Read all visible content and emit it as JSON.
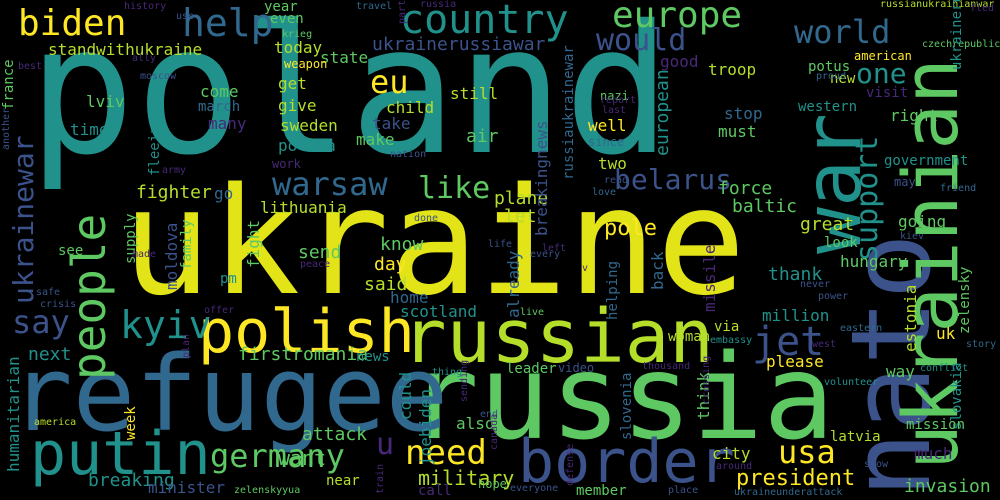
{
  "words": [
    {
      "text": "poland",
      "color": "#21918c"
    },
    {
      "text": "ukraine",
      "color": "#e2e418"
    },
    {
      "text": "russia",
      "color": "#5ec962"
    },
    {
      "text": "refugee",
      "color": "#31688e"
    },
    {
      "text": "nato",
      "color": "#3b528b"
    },
    {
      "text": "ukrainian",
      "color": "#5ec962"
    },
    {
      "text": "war",
      "color": "#21918c"
    },
    {
      "text": "russian",
      "color": "#b5de2b"
    },
    {
      "text": "border",
      "color": "#3b528b"
    },
    {
      "text": "polish",
      "color": "#fde725"
    },
    {
      "text": "putin",
      "color": "#21918c"
    },
    {
      "text": "country",
      "color": "#21918c"
    },
    {
      "text": "biden",
      "color": "#fde725"
    },
    {
      "text": "help",
      "color": "#31688e"
    },
    {
      "text": "europe",
      "color": "#5ec962"
    },
    {
      "text": "world",
      "color": "#31688e"
    },
    {
      "text": "would",
      "color": "#3b528b"
    },
    {
      "text": "people",
      "color": "#5ec962"
    },
    {
      "text": "germany",
      "color": "#5ec962"
    },
    {
      "text": "need",
      "color": "#fde725"
    },
    {
      "text": "usa",
      "color": "#fde725"
    },
    {
      "text": "warsaw",
      "color": "#31688e"
    },
    {
      "text": "belarus",
      "color": "#3b528b"
    },
    {
      "text": "like",
      "color": "#5ec962"
    },
    {
      "text": "jet",
      "color": "#3b528b"
    },
    {
      "text": "kyiv",
      "color": "#21918c"
    },
    {
      "text": "say",
      "color": "#3b528b"
    },
    {
      "text": "eu",
      "color": "#fde725"
    },
    {
      "text": "one",
      "color": "#21918c"
    },
    {
      "text": "support",
      "color": "#21918c"
    },
    {
      "text": "ukrainewar",
      "color": "#3b528b"
    },
    {
      "text": "standwithukraine",
      "color": "#b5de2b"
    },
    {
      "text": "ukrainerussiawar",
      "color": "#3b528b"
    },
    {
      "text": "firstromania",
      "color": "#5ec962"
    },
    {
      "text": "u",
      "color": "#482878"
    },
    {
      "text": "fighter",
      "color": "#b5de2b"
    },
    {
      "text": "lithuania",
      "color": "#b5de2b"
    },
    {
      "text": "pole",
      "color": "#fde725"
    },
    {
      "text": "plane",
      "color": "#b5de2b"
    },
    {
      "text": "baltic",
      "color": "#5ec962"
    },
    {
      "text": "force",
      "color": "#5ec962"
    },
    {
      "text": "great",
      "color": "#b5de2b"
    },
    {
      "text": "going",
      "color": "#5ec962"
    },
    {
      "text": "hungary",
      "color": "#5ec962"
    },
    {
      "text": "thank",
      "color": "#21918c"
    },
    {
      "text": "president",
      "color": "#fde725"
    },
    {
      "text": "invasion",
      "color": "#5ec962"
    },
    {
      "text": "military",
      "color": "#b5de2b"
    },
    {
      "text": "attack",
      "color": "#5ec962"
    },
    {
      "text": "want",
      "color": "#5ec962"
    },
    {
      "text": "breaking",
      "color": "#21918c"
    },
    {
      "text": "humanitarian",
      "color": "#21918c"
    },
    {
      "text": "minister",
      "color": "#3b528b"
    },
    {
      "text": "next",
      "color": "#21918c"
    },
    {
      "text": "scotland",
      "color": "#21918c"
    },
    {
      "text": "home",
      "color": "#31688e"
    },
    {
      "text": "said",
      "color": "#b5de2b"
    },
    {
      "text": "day",
      "color": "#fde725"
    },
    {
      "text": "know",
      "color": "#5ec962"
    },
    {
      "text": "send",
      "color": "#5ec962"
    },
    {
      "text": "let",
      "color": "#b5de2b"
    },
    {
      "text": "helping",
      "color": "#31688e"
    },
    {
      "text": "back",
      "color": "#31688e"
    },
    {
      "text": "missile",
      "color": "#482878"
    },
    {
      "text": "already",
      "color": "#31688e"
    },
    {
      "text": "breakingnews",
      "color": "#3b528b"
    },
    {
      "text": "today",
      "color": "#b5de2b"
    },
    {
      "text": "state",
      "color": "#5ec962"
    },
    {
      "text": "get",
      "color": "#b5de2b"
    },
    {
      "text": "give",
      "color": "#b5de2b"
    },
    {
      "text": "come",
      "color": "#5ec962"
    },
    {
      "text": "march",
      "color": "#31688e"
    },
    {
      "text": "many",
      "color": "#482878"
    },
    {
      "text": "sweden",
      "color": "#b5de2b"
    },
    {
      "text": "polska",
      "color": "#21918c"
    },
    {
      "text": "make",
      "color": "#5ec962"
    },
    {
      "text": "child",
      "color": "#b5de2b"
    },
    {
      "text": "take",
      "color": "#3b528b"
    },
    {
      "text": "air",
      "color": "#5ec962"
    },
    {
      "text": "still",
      "color": "#b5de2b"
    },
    {
      "text": "well",
      "color": "#fde725"
    },
    {
      "text": "two",
      "color": "#b5de2b"
    },
    {
      "text": "european",
      "color": "#21918c"
    },
    {
      "text": "must",
      "color": "#5ec962"
    },
    {
      "text": "stop",
      "color": "#31688e"
    },
    {
      "text": "right",
      "color": "#5ec962"
    },
    {
      "text": "western",
      "color": "#21918c"
    },
    {
      "text": "troop",
      "color": "#b5de2b"
    },
    {
      "text": "good",
      "color": "#482878"
    },
    {
      "text": "new",
      "color": "#b5de2b"
    },
    {
      "text": "potus",
      "color": "#5ec962"
    },
    {
      "text": "visit",
      "color": "#482878"
    },
    {
      "text": "government",
      "color": "#21918c"
    },
    {
      "text": "zelensky",
      "color": "#5ec962"
    },
    {
      "text": "estonia",
      "color": "#b5de2b"
    },
    {
      "text": "slovakia",
      "color": "#21918c"
    },
    {
      "text": "uk",
      "color": "#fde725"
    },
    {
      "text": "mission",
      "color": "#5ec962"
    },
    {
      "text": "latvia",
      "color": "#b5de2b"
    },
    {
      "text": "much",
      "color": "#482878"
    },
    {
      "text": "city",
      "color": "#b5de2b"
    },
    {
      "text": "woman",
      "color": "#b5de2b"
    },
    {
      "text": "via",
      "color": "#b5de2b"
    },
    {
      "text": "please",
      "color": "#fde725"
    },
    {
      "text": "million",
      "color": "#21918c"
    },
    {
      "text": "way",
      "color": "#5ec962"
    },
    {
      "text": "think",
      "color": "#5ec962"
    },
    {
      "text": "could",
      "color": "#21918c"
    },
    {
      "text": "also",
      "color": "#5ec962"
    },
    {
      "text": "joebiden",
      "color": "#21918c"
    },
    {
      "text": "slovenia",
      "color": "#31688e"
    },
    {
      "text": "near",
      "color": "#b5de2b"
    },
    {
      "text": "news",
      "color": "#21918c"
    },
    {
      "text": "week",
      "color": "#fde725"
    },
    {
      "text": "fleeing",
      "color": "#21918c"
    },
    {
      "text": "lviv",
      "color": "#5ec962"
    },
    {
      "text": "time",
      "color": "#21918c"
    },
    {
      "text": "moldova",
      "color": "#3b528b"
    },
    {
      "text": "family",
      "color": "#5ec962"
    },
    {
      "text": "fight",
      "color": "#5ec962"
    },
    {
      "text": "pm",
      "color": "#21918c"
    },
    {
      "text": "go",
      "color": "#31688e"
    },
    {
      "text": "see",
      "color": "#5ec962"
    },
    {
      "text": "supply",
      "color": "#5ec962"
    },
    {
      "text": "france",
      "color": "#5ec962"
    },
    {
      "text": "another",
      "color": "#3b528b"
    },
    {
      "text": "best",
      "color": "#482878"
    },
    {
      "text": "history",
      "color": "#482878"
    },
    {
      "text": "ally",
      "color": "#482878"
    },
    {
      "text": "year",
      "color": "#5ec962"
    },
    {
      "text": "even",
      "color": "#5ec962"
    },
    {
      "text": "krieg",
      "color": "#5ec962"
    },
    {
      "text": "weapon",
      "color": "#fde725"
    },
    {
      "text": "travel",
      "color": "#31688e"
    },
    {
      "text": "russianukrainianwar",
      "color": "#b5de2b"
    },
    {
      "text": "american",
      "color": "#fde725"
    },
    {
      "text": "nazi",
      "color": "#5ec962"
    },
    {
      "text": "report",
      "color": "#482878"
    },
    {
      "text": "last",
      "color": "#482878"
    },
    {
      "text": "since",
      "color": "#31688e"
    },
    {
      "text": "proud",
      "color": "#31688e"
    },
    {
      "text": "czechrepublic",
      "color": "#5ec962"
    },
    {
      "text": "fled",
      "color": "#482878"
    },
    {
      "text": "friend",
      "color": "#31688e"
    },
    {
      "text": "may",
      "color": "#3b528b"
    },
    {
      "text": "kiev",
      "color": "#3b528b"
    },
    {
      "text": "look",
      "color": "#5ec962"
    },
    {
      "text": "leader",
      "color": "#5ec962"
    },
    {
      "text": "video",
      "color": "#3b528b"
    },
    {
      "text": "thousand",
      "color": "#482878"
    },
    {
      "text": "embassy",
      "color": "#21918c"
    },
    {
      "text": "eastern",
      "color": "#31688e"
    },
    {
      "text": "west",
      "color": "#482878"
    },
    {
      "text": "story",
      "color": "#31688e"
    },
    {
      "text": "conflict",
      "color": "#21918c"
    },
    {
      "text": "volunteer",
      "color": "#21918c"
    },
    {
      "text": "never",
      "color": "#3b528b"
    },
    {
      "text": "power",
      "color": "#3b528b"
    },
    {
      "text": "show",
      "color": "#3b528b"
    },
    {
      "text": "around",
      "color": "#482878"
    },
    {
      "text": "place",
      "color": "#3b528b"
    },
    {
      "text": "member",
      "color": "#5ec962"
    },
    {
      "text": "ukraineunderattack",
      "color": "#31688e"
    },
    {
      "text": "everyone",
      "color": "#3b528b"
    },
    {
      "text": "call",
      "color": "#482878"
    },
    {
      "text": "hope",
      "color": "#5ec962"
    },
    {
      "text": "zelenskyyua",
      "color": "#5ec962"
    },
    {
      "text": "america",
      "color": "#b5de2b"
    },
    {
      "text": "crisis",
      "color": "#3b528b"
    },
    {
      "text": "safe",
      "color": "#3b528b"
    },
    {
      "text": "offer",
      "color": "#482878"
    },
    {
      "text": "peace",
      "color": "#482878"
    },
    {
      "text": "live",
      "color": "#5ec962"
    },
    {
      "text": "life",
      "color": "#3b528b"
    },
    {
      "text": "every",
      "color": "#3b528b"
    },
    {
      "text": "left",
      "color": "#482878"
    },
    {
      "text": "done",
      "color": "#3b528b"
    },
    {
      "text": "love",
      "color": "#31688e"
    },
    {
      "text": "read",
      "color": "#3b528b"
    },
    {
      "text": "nation",
      "color": "#3b528b"
    },
    {
      "text": "army",
      "color": "#482878"
    },
    {
      "text": "moscow",
      "color": "#3b528b"
    },
    {
      "text": "use",
      "color": "#3b528b"
    },
    {
      "text": "work",
      "color": "#482878"
    },
    {
      "text": "end",
      "color": "#3b528b"
    },
    {
      "text": "sending",
      "color": "#482878"
    },
    {
      "text": "thing",
      "color": "#21918c"
    },
    {
      "text": "defense",
      "color": "#482878"
    },
    {
      "text": "canada",
      "color": "#482878"
    },
    {
      "text": "train",
      "color": "#482878"
    },
    {
      "text": "crossing",
      "color": "#482878"
    },
    {
      "text": "made",
      "color": "#482878"
    },
    {
      "text": "plan",
      "color": "#482878"
    },
    {
      "text": "part",
      "color": "#482878"
    },
    {
      "text": "v",
      "color": "#482878"
    },
    {
      "text": "ukrainerussianwar",
      "color": "#21918c"
    },
    {
      "text": "russiaukrainewar",
      "color": "#31688e"
    },
    {
      "text": "russia",
      "color": "#482878"
    }
  ]
}
